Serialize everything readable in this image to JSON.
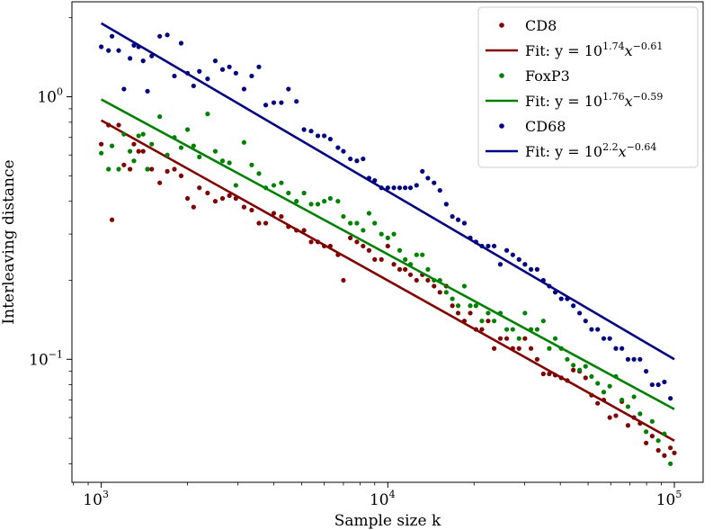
{
  "chart_data": {
    "type": "scatter",
    "xlabel": "Sample size k",
    "ylabel": "Interleaving distance",
    "x_scale": "log",
    "y_scale": "log",
    "xlim": [
      790,
      126000
    ],
    "ylim": [
      0.034,
      2.3
    ],
    "x_ticks": [
      {
        "value": 1000,
        "base": "10",
        "exp": "3"
      },
      {
        "value": 10000,
        "base": "10",
        "exp": "4"
      },
      {
        "value": 100000,
        "base": "10",
        "exp": "5"
      }
    ],
    "y_ticks": [
      {
        "value": 0.1,
        "base": "10",
        "exp": "−1"
      },
      {
        "value": 1,
        "base": "10",
        "exp": "0"
      }
    ],
    "legend_position": "top-right",
    "grid": false,
    "fit_range": [
      1000,
      100000
    ],
    "series": [
      {
        "name": "CD8",
        "color": "#800000",
        "fit_label_prefix": "Fit: y = 10",
        "fit_intercept_exp": "1.74",
        "fit_x_label": "x",
        "fit_slope_exp": "−0.61",
        "fit_intercept": 1.74,
        "fit_slope": -0.61,
        "points": [
          [
            1000,
            0.66
          ],
          [
            1060,
            0.78
          ],
          [
            1090,
            0.34
          ],
          [
            1150,
            0.78
          ],
          [
            1200,
            0.55
          ],
          [
            1260,
            0.53
          ],
          [
            1300,
            0.66
          ],
          [
            1350,
            0.62
          ],
          [
            1400,
            0.62
          ],
          [
            1450,
            0.53
          ],
          [
            1500,
            0.53
          ],
          [
            1600,
            0.47
          ],
          [
            1700,
            0.52
          ],
          [
            1800,
            0.53
          ],
          [
            1900,
            0.5
          ],
          [
            2000,
            0.41
          ],
          [
            2100,
            0.38
          ],
          [
            2200,
            0.45
          ],
          [
            2350,
            0.43
          ],
          [
            2500,
            0.4
          ],
          [
            2650,
            0.41
          ],
          [
            2800,
            0.42
          ],
          [
            2950,
            0.41
          ],
          [
            3150,
            0.38
          ],
          [
            3350,
            0.37
          ],
          [
            3550,
            0.33
          ],
          [
            3750,
            0.33
          ],
          [
            4000,
            0.36
          ],
          [
            4250,
            0.35
          ],
          [
            4500,
            0.32
          ],
          [
            4800,
            0.31
          ],
          [
            5100,
            0.31
          ],
          [
            5400,
            0.28
          ],
          [
            5700,
            0.28
          ],
          [
            6000,
            0.27
          ],
          [
            6300,
            0.27
          ],
          [
            6700,
            0.25
          ],
          [
            7000,
            0.2
          ],
          [
            7400,
            0.29
          ],
          [
            7800,
            0.28
          ],
          [
            8200,
            0.27
          ],
          [
            8600,
            0.26
          ],
          [
            9000,
            0.24
          ],
          [
            9500,
            0.24
          ],
          [
            10000,
            0.27
          ],
          [
            10500,
            0.23
          ],
          [
            11000,
            0.22
          ],
          [
            11500,
            0.22
          ],
          [
            12000,
            0.21
          ],
          [
            12600,
            0.2
          ],
          [
            13200,
            0.21
          ],
          [
            13800,
            0.2
          ],
          [
            14500,
            0.19
          ],
          [
            15200,
            0.18
          ],
          [
            16000,
            0.19
          ],
          [
            16800,
            0.16
          ],
          [
            17600,
            0.15
          ],
          [
            18500,
            0.14
          ],
          [
            19400,
            0.15
          ],
          [
            20300,
            0.13
          ],
          [
            21300,
            0.13
          ],
          [
            22400,
            0.14
          ],
          [
            23500,
            0.11
          ],
          [
            24700,
            0.12
          ],
          [
            26000,
            0.12
          ],
          [
            27300,
            0.11
          ],
          [
            28700,
            0.11
          ],
          [
            30100,
            0.12
          ],
          [
            31600,
            0.11
          ],
          [
            33200,
            0.1
          ],
          [
            34900,
            0.088
          ],
          [
            36600,
            0.088
          ],
          [
            38400,
            0.087
          ],
          [
            40300,
            0.085
          ],
          [
            42300,
            0.083
          ],
          [
            44400,
            0.091
          ],
          [
            46700,
            0.09
          ],
          [
            49000,
            0.085
          ],
          [
            51400,
            0.073
          ],
          [
            54000,
            0.068
          ],
          [
            56700,
            0.07
          ],
          [
            59500,
            0.06
          ],
          [
            62500,
            0.061
          ],
          [
            65600,
            0.069
          ],
          [
            68900,
            0.056
          ],
          [
            72300,
            0.06
          ],
          [
            75900,
            0.057
          ],
          [
            79700,
            0.048
          ],
          [
            83700,
            0.051
          ],
          [
            87900,
            0.045
          ],
          [
            92300,
            0.043
          ],
          [
            96900,
            0.046
          ],
          [
            100000,
            0.044
          ]
        ]
      },
      {
        "name": "FoxP3",
        "color": "#008000",
        "fit_label_prefix": "Fit: y = 10",
        "fit_intercept_exp": "1.76",
        "fit_x_label": "x",
        "fit_slope_exp": "−0.59",
        "fit_intercept": 1.76,
        "fit_slope": -0.59,
        "points": [
          [
            1000,
            0.61
          ],
          [
            1060,
            0.53
          ],
          [
            1090,
            0.65
          ],
          [
            1150,
            0.53
          ],
          [
            1200,
            0.72
          ],
          [
            1260,
            0.62
          ],
          [
            1300,
            0.57
          ],
          [
            1350,
            0.71
          ],
          [
            1400,
            0.72
          ],
          [
            1450,
            0.53
          ],
          [
            1500,
            0.66
          ],
          [
            1600,
            0.84
          ],
          [
            1700,
            0.6
          ],
          [
            1800,
            0.7
          ],
          [
            1900,
            0.64
          ],
          [
            2000,
            0.75
          ],
          [
            2100,
            0.65
          ],
          [
            2200,
            0.59
          ],
          [
            2350,
            0.86
          ],
          [
            2500,
            0.62
          ],
          [
            2650,
            0.57
          ],
          [
            2800,
            0.56
          ],
          [
            2950,
            0.46
          ],
          [
            3150,
            0.67
          ],
          [
            3350,
            0.55
          ],
          [
            3550,
            0.51
          ],
          [
            3750,
            0.45
          ],
          [
            4000,
            0.46
          ],
          [
            4250,
            0.47
          ],
          [
            4500,
            0.43
          ],
          [
            4800,
            0.4
          ],
          [
            5100,
            0.43
          ],
          [
            5400,
            0.39
          ],
          [
            5700,
            0.39
          ],
          [
            6000,
            0.4
          ],
          [
            6300,
            0.41
          ],
          [
            6700,
            0.4
          ],
          [
            7000,
            0.35
          ],
          [
            7400,
            0.33
          ],
          [
            7800,
            0.33
          ],
          [
            8200,
            0.31
          ],
          [
            8600,
            0.36
          ],
          [
            9000,
            0.33
          ],
          [
            9500,
            0.3
          ],
          [
            10000,
            0.29
          ],
          [
            10500,
            0.3
          ],
          [
            11000,
            0.26
          ],
          [
            11500,
            0.24
          ],
          [
            12000,
            0.23
          ],
          [
            12600,
            0.25
          ],
          [
            13200,
            0.25
          ],
          [
            13800,
            0.22
          ],
          [
            14500,
            0.2
          ],
          [
            15200,
            0.2
          ],
          [
            16000,
            0.18
          ],
          [
            16800,
            0.17
          ],
          [
            17600,
            0.16
          ],
          [
            18500,
            0.19
          ],
          [
            19400,
            0.16
          ],
          [
            20300,
            0.16
          ],
          [
            21300,
            0.14
          ],
          [
            22400,
            0.15
          ],
          [
            23500,
            0.14
          ],
          [
            24700,
            0.15
          ],
          [
            26000,
            0.13
          ],
          [
            27300,
            0.13
          ],
          [
            28700,
            0.12
          ],
          [
            30100,
            0.15
          ],
          [
            31600,
            0.13
          ],
          [
            33200,
            0.13
          ],
          [
            34900,
            0.14
          ],
          [
            36600,
            0.11
          ],
          [
            38400,
            0.12
          ],
          [
            40300,
            0.11
          ],
          [
            42300,
            0.1
          ],
          [
            44400,
            0.095
          ],
          [
            46700,
            0.091
          ],
          [
            49000,
            0.094
          ],
          [
            51400,
            0.086
          ],
          [
            54000,
            0.081
          ],
          [
            56700,
            0.075
          ],
          [
            59500,
            0.079
          ],
          [
            62500,
            0.086
          ],
          [
            65600,
            0.07
          ],
          [
            68900,
            0.066
          ],
          [
            72300,
            0.072
          ],
          [
            75900,
            0.062
          ],
          [
            79700,
            0.053
          ],
          [
            83700,
            0.058
          ],
          [
            87900,
            0.049
          ],
          [
            92300,
            0.052
          ],
          [
            96900,
            0.04
          ]
        ]
      },
      {
        "name": "CD68",
        "color": "#000080",
        "fit_label_prefix": "Fit: y = 10",
        "fit_intercept_exp": "2.2",
        "fit_x_label": "x",
        "fit_slope_exp": "−0.64",
        "fit_intercept": 2.2,
        "fit_slope": -0.64,
        "points": [
          [
            1000,
            1.55
          ],
          [
            1060,
            1.5
          ],
          [
            1090,
            1.7
          ],
          [
            1150,
            1.5
          ],
          [
            1200,
            1.07
          ],
          [
            1260,
            1.4
          ],
          [
            1300,
            1.57
          ],
          [
            1350,
            1.55
          ],
          [
            1400,
            1.37
          ],
          [
            1450,
            1.05
          ],
          [
            1500,
            1.43
          ],
          [
            1600,
            1.7
          ],
          [
            1700,
            1.72
          ],
          [
            1800,
            1.2
          ],
          [
            1900,
            1.6
          ],
          [
            2000,
            1.23
          ],
          [
            2100,
            1.1
          ],
          [
            2200,
            1.25
          ],
          [
            2350,
            1.17
          ],
          [
            2500,
            1.37
          ],
          [
            2650,
            1.27
          ],
          [
            2800,
            1.3
          ],
          [
            2950,
            1.23
          ],
          [
            3150,
            1.07
          ],
          [
            3350,
            1.2
          ],
          [
            3550,
            1.3
          ],
          [
            3750,
            0.93
          ],
          [
            4000,
            0.95
          ],
          [
            4250,
            0.95
          ],
          [
            4500,
            1.07
          ],
          [
            4800,
            0.96
          ],
          [
            5100,
            0.75
          ],
          [
            5400,
            0.74
          ],
          [
            5700,
            0.71
          ],
          [
            6000,
            0.71
          ],
          [
            6300,
            0.69
          ],
          [
            6700,
            0.64
          ],
          [
            7000,
            0.62
          ],
          [
            7400,
            0.58
          ],
          [
            7800,
            0.57
          ],
          [
            8200,
            0.58
          ],
          [
            8600,
            0.49
          ],
          [
            9000,
            0.48
          ],
          [
            9500,
            0.45
          ],
          [
            10000,
            0.45
          ],
          [
            10500,
            0.45
          ],
          [
            11000,
            0.45
          ],
          [
            11500,
            0.45
          ],
          [
            12000,
            0.45
          ],
          [
            12600,
            0.46
          ],
          [
            13200,
            0.52
          ],
          [
            13800,
            0.49
          ],
          [
            14500,
            0.47
          ],
          [
            15200,
            0.44
          ],
          [
            16000,
            0.39
          ],
          [
            16800,
            0.35
          ],
          [
            17600,
            0.34
          ],
          [
            18500,
            0.33
          ],
          [
            19400,
            0.29
          ],
          [
            20300,
            0.28
          ],
          [
            21300,
            0.27
          ],
          [
            22400,
            0.27
          ],
          [
            23500,
            0.27
          ],
          [
            24700,
            0.23
          ],
          [
            26000,
            0.26
          ],
          [
            27300,
            0.25
          ],
          [
            28700,
            0.24
          ],
          [
            30100,
            0.23
          ],
          [
            31600,
            0.22
          ],
          [
            33200,
            0.22
          ],
          [
            34900,
            0.2
          ],
          [
            36600,
            0.19
          ],
          [
            38400,
            0.18
          ],
          [
            40300,
            0.17
          ],
          [
            42300,
            0.17
          ],
          [
            44400,
            0.16
          ],
          [
            46700,
            0.15
          ],
          [
            49000,
            0.14
          ],
          [
            51400,
            0.13
          ],
          [
            54000,
            0.13
          ],
          [
            56700,
            0.12
          ],
          [
            59500,
            0.12
          ],
          [
            62500,
            0.11
          ],
          [
            65600,
            0.11
          ],
          [
            68900,
            0.1
          ],
          [
            72300,
            0.1
          ],
          [
            75900,
            0.1
          ],
          [
            79700,
            0.09
          ],
          [
            83700,
            0.08
          ],
          [
            87900,
            0.08
          ],
          [
            92300,
            0.082
          ],
          [
            96900,
            0.071
          ]
        ]
      }
    ]
  }
}
